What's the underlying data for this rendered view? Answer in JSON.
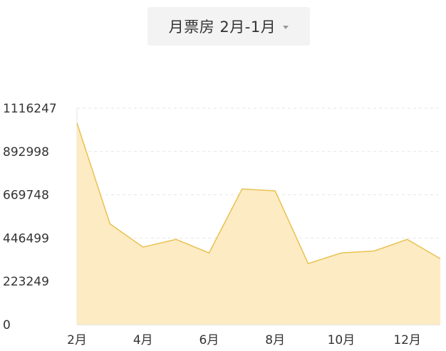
{
  "selector": {
    "label": "月票房 2月-1月"
  },
  "colors": {
    "line": "#e8c24f",
    "area": "#fdebc4",
    "grid": "#e6e6e6",
    "axis": "#cccccc"
  },
  "chart_data": {
    "type": "area",
    "x": [
      "2月",
      "3月",
      "4月",
      "5月",
      "6月",
      "7月",
      "8月",
      "9月",
      "10月",
      "11月",
      "12月",
      "1月"
    ],
    "xtick_labels": [
      "2月",
      "4月",
      "6月",
      "8月",
      "10月",
      "12月"
    ],
    "values": [
      1040000,
      520000,
      400000,
      440000,
      370000,
      700000,
      690000,
      315000,
      370000,
      380000,
      440000,
      340000
    ],
    "yticks": [
      0,
      223249,
      446499,
      669748,
      892998,
      1116247
    ],
    "ytick_labels": [
      "0",
      "223249",
      "446499",
      "669748",
      "892998",
      "1116247"
    ],
    "ylim": [
      0,
      1116247
    ],
    "title": "",
    "xlabel": "",
    "ylabel": "",
    "grid": true
  }
}
